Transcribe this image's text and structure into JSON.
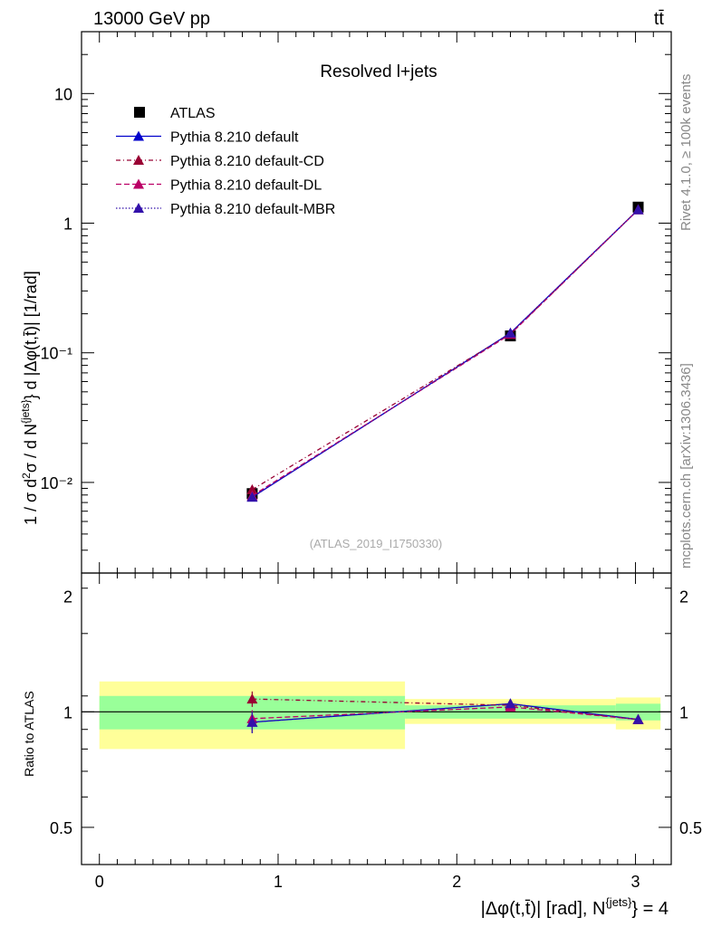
{
  "header": {
    "energy": "13000 GeV pp",
    "process": "tt̄",
    "plot_title": "Resolved l+jets",
    "watermark": "(ATLAS_2019_I1750330)",
    "side_top": "Rivet 4.1.0, ≥ 100k events",
    "side_bottom": "mcplots.cern.ch [arXiv:1306.3436]"
  },
  "axes": {
    "ylabel_main": "1 / σ d²σ / d N^{jets} d |Δφ(t,t̄)| [1/rad]",
    "ylabel_ratio": "Ratio to ATLAS",
    "xlabel": "|Δφ(t,t̄)| [rad], N^{jets} = 4",
    "x_ticks": [
      "0",
      "1",
      "2",
      "3"
    ],
    "main_y_ticks": [
      "10⁻²",
      "10⁻¹",
      "1",
      "10"
    ],
    "ratio_y_ticks": [
      "0.5",
      "1",
      "2"
    ]
  },
  "legend": [
    {
      "label": "ATLAS",
      "color": "#000000",
      "marker": "square-marker",
      "dash": ""
    },
    {
      "label": "Pythia 8.210 default",
      "color": "#0000cc",
      "marker": "triangle-marker",
      "dash": ""
    },
    {
      "label": "Pythia 8.210 default-CD",
      "color": "#990033",
      "marker": "triangle-marker",
      "dash": "5,3,1,3"
    },
    {
      "label": "Pythia 8.210 default-DL",
      "color": "#bb0066",
      "marker": "triangle-marker",
      "dash": "6,3"
    },
    {
      "label": "Pythia 8.210 default-MBR",
      "color": "#3311aa",
      "marker": "triangle-marker",
      "dash": "1.5,2"
    }
  ],
  "chart_data": {
    "type": "line",
    "title": "Resolved l+jets",
    "xlabel": "|Δφ(t,t̄)| [rad], N^{jets} = 4",
    "ylabel": "1 / σ d²σ / d N^{jets} d |Δφ(t,t̄)| [1/rad]",
    "xlim": [
      -0.1,
      3.2
    ],
    "ylim_main": [
      0.002,
      30
    ],
    "yscale_main": "log",
    "ylim_ratio": [
      0.4,
      2.3
    ],
    "yscale_ratio": "log",
    "bins": [
      [
        0.0,
        1.71
      ],
      [
        1.71,
        2.89
      ],
      [
        2.89,
        3.14
      ]
    ],
    "x": [
      0.855,
      2.3,
      3.015
    ],
    "series": [
      {
        "name": "ATLAS",
        "values": [
          0.0082,
          0.135,
          1.33
        ],
        "errors": [
          0.0008,
          0.01,
          0.05
        ]
      },
      {
        "name": "Pythia 8.210 default",
        "values": [
          0.0077,
          0.142,
          1.27
        ]
      },
      {
        "name": "Pythia 8.210 default-CD",
        "values": [
          0.0088,
          0.14,
          1.27
        ]
      },
      {
        "name": "Pythia 8.210 default-DL",
        "values": [
          0.0079,
          0.139,
          1.27
        ]
      },
      {
        "name": "Pythia 8.210 default-MBR",
        "values": [
          0.0077,
          0.142,
          1.27
        ]
      }
    ],
    "ratio": {
      "reference": "ATLAS",
      "band_inner": [
        [
          0.9,
          1.1
        ],
        [
          0.96,
          1.04
        ],
        [
          0.95,
          1.05
        ]
      ],
      "band_outer": [
        [
          0.8,
          1.2
        ],
        [
          0.93,
          1.08
        ],
        [
          0.9,
          1.09
        ]
      ],
      "series": [
        {
          "name": "Pythia 8.210 default",
          "values": [
            0.94,
            1.05,
            0.955
          ],
          "errors": [
            0.06,
            0.005,
            0.005
          ]
        },
        {
          "name": "Pythia 8.210 default-CD",
          "values": [
            1.08,
            1.04,
            0.955
          ],
          "errors": [
            0.05,
            0.005,
            0.005
          ]
        },
        {
          "name": "Pythia 8.210 default-DL",
          "values": [
            0.96,
            1.03,
            0.955
          ],
          "errors": [
            0.05,
            0.005,
            0.005
          ]
        },
        {
          "name": "Pythia 8.210 default-MBR",
          "values": [
            0.94,
            1.05,
            0.955
          ],
          "errors": [
            0.06,
            0.005,
            0.005
          ]
        }
      ]
    }
  }
}
